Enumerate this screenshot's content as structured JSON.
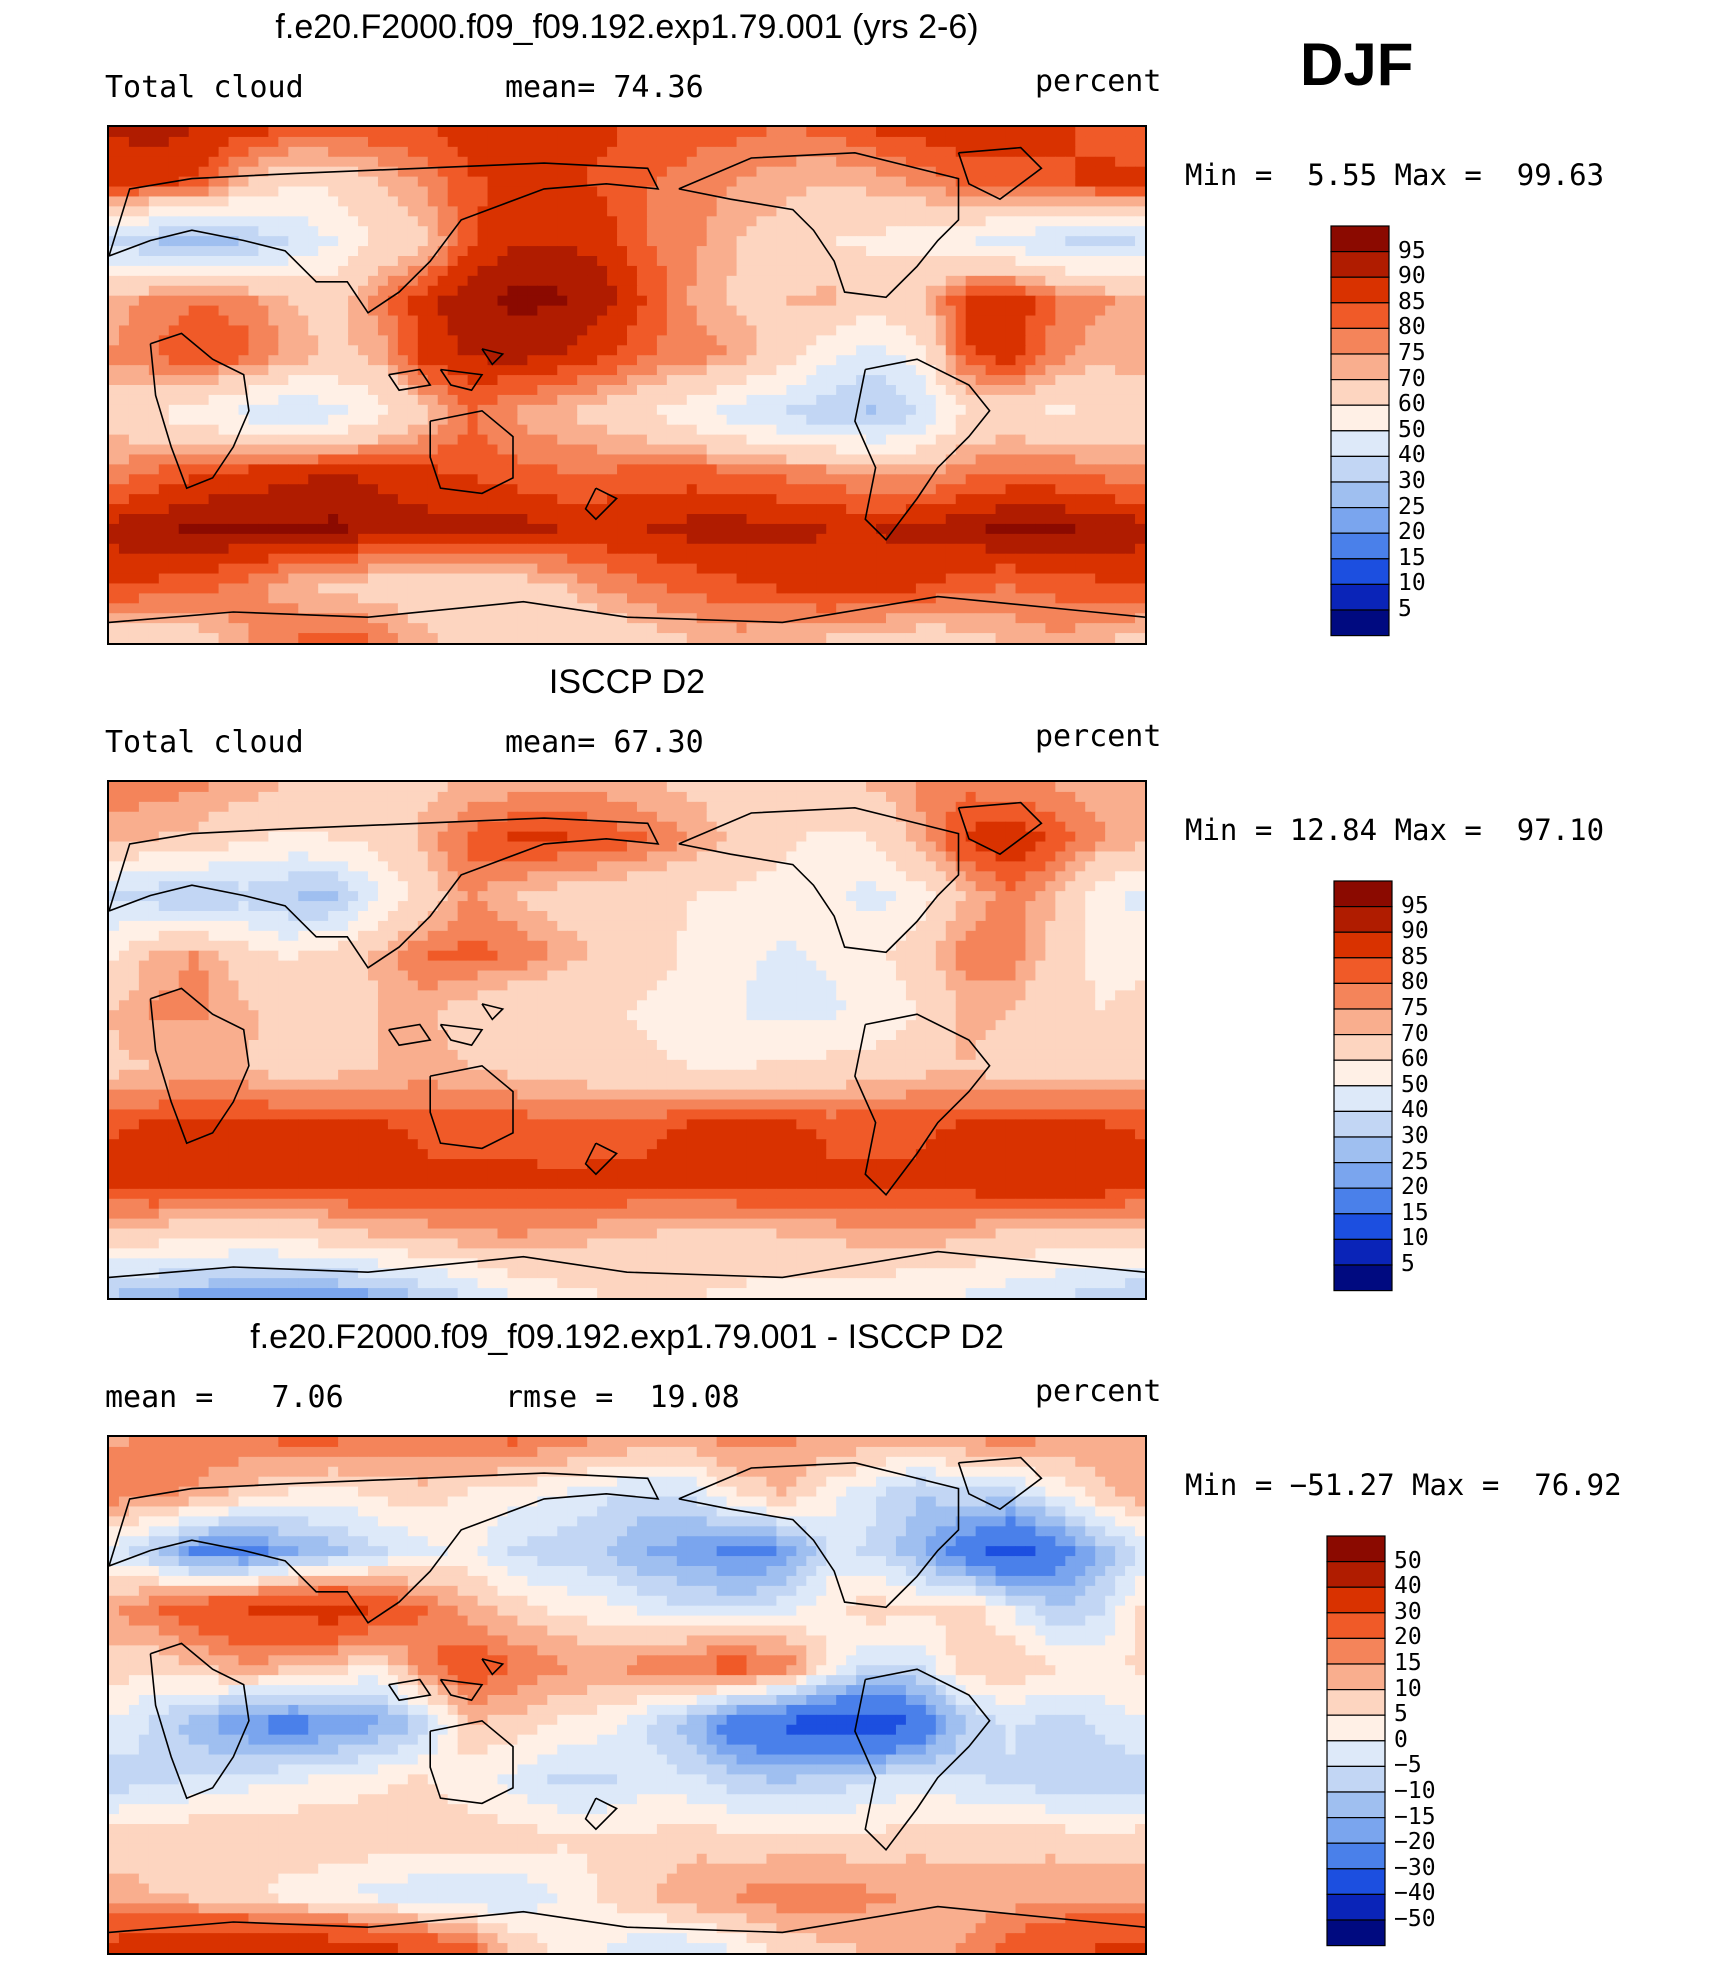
{
  "season": "DJF",
  "chart_data": [
    {
      "type": "heatmap",
      "title": "f.e20.F2000.f09_f09.192.exp1.79.001 (yrs 2-6)",
      "variable": "Total cloud",
      "units": "percent",
      "mean_label": "mean=",
      "mean_value": "74.36",
      "min_label": "Min =",
      "min_value": "5.55",
      "max_label": "Max =",
      "max_value": "99.63",
      "colorbar_levels": [
        "95",
        "90",
        "85",
        "80",
        "75",
        "70",
        "60",
        "50",
        "40",
        "30",
        "25",
        "20",
        "15",
        "10",
        "5"
      ],
      "colors": [
        "#8b0a00",
        "#b01c00",
        "#d93200",
        "#f05a28",
        "#f4845a",
        "#f9ae8e",
        "#fdd5c0",
        "#fff0e6",
        "#dde9f9",
        "#c2d6f4",
        "#9fbff0",
        "#7aa5ee",
        "#4a80ea",
        "#1c4fe0",
        "#0a24b8",
        "#000a80"
      ],
      "field": [
        [
          90,
          92,
          90,
          88,
          86,
          85,
          84,
          85,
          88,
          90,
          88,
          86,
          84,
          82,
          82,
          80,
          82,
          86,
          88,
          90,
          88,
          86,
          84,
          82
        ],
        [
          88,
          86,
          84,
          70,
          60,
          62,
          70,
          76,
          84,
          86,
          86,
          84,
          80,
          78,
          74,
          72,
          70,
          72,
          76,
          80,
          82,
          84,
          86,
          86
        ],
        [
          40,
          30,
          24,
          30,
          40,
          50,
          62,
          68,
          84,
          90,
          90,
          88,
          80,
          76,
          70,
          66,
          60,
          58,
          55,
          52,
          45,
          40,
          38,
          40
        ],
        [
          70,
          78,
          80,
          78,
          70,
          68,
          78,
          88,
          94,
          96,
          96,
          92,
          84,
          74,
          68,
          70,
          72,
          66,
          70,
          86,
          90,
          80,
          76,
          72
        ],
        [
          76,
          80,
          84,
          82,
          74,
          68,
          72,
          88,
          90,
          92,
          90,
          86,
          80,
          78,
          74,
          66,
          52,
          44,
          56,
          84,
          88,
          78,
          72,
          74
        ],
        [
          66,
          60,
          54,
          46,
          40,
          46,
          56,
          68,
          80,
          74,
          70,
          66,
          60,
          52,
          44,
          38,
          34,
          28,
          40,
          60,
          64,
          58,
          60,
          64
        ],
        [
          76,
          80,
          84,
          86,
          88,
          90,
          88,
          86,
          84,
          82,
          80,
          80,
          82,
          82,
          80,
          78,
          76,
          74,
          72,
          78,
          80,
          80,
          78,
          76
        ],
        [
          92,
          94,
          96,
          96,
          96,
          96,
          94,
          92,
          92,
          92,
          90,
          90,
          90,
          92,
          92,
          92,
          90,
          90,
          92,
          94,
          96,
          96,
          94,
          92
        ],
        [
          86,
          84,
          82,
          78,
          72,
          68,
          66,
          64,
          62,
          66,
          70,
          76,
          80,
          82,
          84,
          86,
          88,
          88,
          86,
          82,
          80,
          82,
          84,
          86
        ],
        [
          64,
          62,
          66,
          74,
          80,
          84,
          80,
          72,
          66,
          62,
          60,
          62,
          66,
          70,
          72,
          70,
          68,
          66,
          64,
          66,
          70,
          74,
          70,
          66
        ]
      ]
    },
    {
      "type": "heatmap",
      "title": "ISCCP D2",
      "variable": "Total cloud",
      "units": "percent",
      "mean_label": "mean=",
      "mean_value": "67.30",
      "min_label": "Min =",
      "min_value": "12.84",
      "max_label": "Max =",
      "max_value": "97.10",
      "colorbar_levels": [
        "95",
        "90",
        "85",
        "80",
        "75",
        "70",
        "60",
        "50",
        "40",
        "30",
        "25",
        "20",
        "15",
        "10",
        "5"
      ],
      "colors": [
        "#8b0a00",
        "#b01c00",
        "#d93200",
        "#f05a28",
        "#f4845a",
        "#f9ae8e",
        "#fdd5c0",
        "#fff0e6",
        "#dde9f9",
        "#c2d6f4",
        "#9fbff0",
        "#7aa5ee",
        "#4a80ea",
        "#1c4fe0",
        "#0a24b8",
        "#000a80"
      ],
      "field": [
        [
          80,
          78,
          76,
          74,
          70,
          68,
          66,
          68,
          70,
          72,
          74,
          72,
          70,
          68,
          66,
          66,
          68,
          72,
          76,
          78,
          76,
          74,
          72,
          70
        ],
        [
          72,
          70,
          68,
          62,
          58,
          60,
          64,
          72,
          82,
          86,
          86,
          84,
          80,
          74,
          68,
          62,
          58,
          60,
          74,
          86,
          90,
          84,
          76,
          72
        ],
        [
          40,
          34,
          30,
          36,
          30,
          28,
          50,
          64,
          76,
          70,
          66,
          64,
          62,
          60,
          58,
          56,
          52,
          46,
          56,
          70,
          78,
          72,
          54,
          46
        ],
        [
          58,
          72,
          76,
          64,
          58,
          64,
          72,
          80,
          82,
          80,
          74,
          68,
          64,
          58,
          52,
          48,
          52,
          58,
          66,
          78,
          80,
          66,
          58,
          56
        ],
        [
          70,
          76,
          76,
          72,
          66,
          64,
          70,
          72,
          66,
          60,
          60,
          62,
          58,
          54,
          50,
          46,
          48,
          52,
          60,
          72,
          70,
          62,
          60,
          64
        ],
        [
          68,
          70,
          72,
          70,
          66,
          68,
          70,
          72,
          70,
          68,
          66,
          64,
          62,
          60,
          60,
          62,
          64,
          66,
          68,
          70,
          66,
          66,
          66,
          68
        ],
        [
          84,
          86,
          88,
          88,
          86,
          86,
          86,
          84,
          84,
          84,
          82,
          84,
          84,
          86,
          86,
          86,
          84,
          84,
          84,
          86,
          88,
          86,
          86,
          84
        ],
        [
          88,
          90,
          90,
          88,
          88,
          88,
          88,
          86,
          86,
          86,
          86,
          86,
          86,
          86,
          88,
          88,
          86,
          86,
          86,
          88,
          90,
          90,
          90,
          88
        ],
        [
          64,
          62,
          60,
          58,
          60,
          64,
          68,
          70,
          72,
          74,
          72,
          70,
          68,
          66,
          66,
          68,
          70,
          72,
          72,
          70,
          66,
          64,
          64,
          64
        ],
        [
          28,
          24,
          20,
          18,
          16,
          18,
          22,
          30,
          40,
          50,
          56,
          60,
          62,
          60,
          58,
          56,
          54,
          52,
          50,
          48,
          44,
          40,
          34,
          30
        ]
      ]
    },
    {
      "type": "heatmap",
      "title": "f.e20.F2000.f09_f09.192.exp1.79.001 - ISCCP D2",
      "variable": "",
      "units": "percent",
      "mean_label": "mean =",
      "mean_value": "7.06",
      "rmse_label": "rmse =",
      "rmse_value": "19.08",
      "min_label": "Min =",
      "min_value": "−51.27",
      "max_label": "Max =",
      "max_value": "76.92",
      "colorbar_levels": [
        "50",
        "40",
        "30",
        "20",
        "15",
        "10",
        "5",
        "0",
        "−5",
        "−10",
        "−15",
        "−20",
        "−30",
        "−40",
        "−50"
      ],
      "colors": [
        "#8b0a00",
        "#b01c00",
        "#d93200",
        "#f05a28",
        "#f4845a",
        "#f9ae8e",
        "#fdd5c0",
        "#fff0e6",
        "#dde9f9",
        "#c2d6f4",
        "#9fbff0",
        "#7aa5ee",
        "#4a80ea",
        "#1c4fe0",
        "#0a24b8",
        "#000a80"
      ],
      "field": [
        [
          14,
          16,
          18,
          20,
          22,
          22,
          20,
          18,
          20,
          22,
          18,
          16,
          14,
          14,
          18,
          16,
          14,
          14,
          12,
          16,
          18,
          16,
          14,
          14
        ],
        [
          18,
          16,
          14,
          8,
          4,
          2,
          6,
          8,
          4,
          2,
          0,
          -4,
          -6,
          -4,
          6,
          10,
          2,
          -4,
          -10,
          -6,
          -8,
          0,
          8,
          14
        ],
        [
          -2,
          -10,
          -22,
          -24,
          -16,
          -12,
          -6,
          -2,
          2,
          -6,
          -8,
          -10,
          -16,
          -18,
          -22,
          -20,
          -4,
          -6,
          -14,
          -26,
          -34,
          -26,
          -14,
          -4
        ],
        [
          14,
          20,
          26,
          30,
          34,
          36,
          28,
          20,
          12,
          8,
          4,
          2,
          -2,
          -4,
          -6,
          -2,
          4,
          8,
          6,
          8,
          0,
          -10,
          -6,
          8
        ],
        [
          8,
          6,
          10,
          14,
          12,
          8,
          4,
          18,
          26,
          20,
          16,
          14,
          18,
          22,
          24,
          20,
          4,
          -6,
          -4,
          8,
          10,
          6,
          4,
          6
        ],
        [
          0,
          -6,
          -14,
          -20,
          -24,
          -20,
          -16,
          -8,
          10,
          8,
          4,
          2,
          -6,
          -14,
          -28,
          -32,
          -36,
          -38,
          -28,
          -10,
          -4,
          -8,
          -4,
          0
        ],
        [
          -8,
          -6,
          -4,
          -2,
          0,
          2,
          4,
          6,
          2,
          -2,
          -6,
          -6,
          -2,
          -4,
          -8,
          -10,
          -8,
          -4,
          -2,
          -4,
          -6,
          -8,
          -10,
          -8
        ],
        [
          8,
          8,
          10,
          10,
          10,
          10,
          8,
          8,
          8,
          8,
          6,
          6,
          6,
          8,
          6,
          6,
          6,
          6,
          8,
          8,
          8,
          8,
          6,
          8
        ],
        [
          12,
          10,
          8,
          6,
          2,
          0,
          -2,
          -4,
          -6,
          -4,
          0,
          6,
          10,
          14,
          16,
          18,
          18,
          16,
          14,
          12,
          12,
          14,
          14,
          12
        ],
        [
          36,
          38,
          40,
          42,
          42,
          40,
          36,
          30,
          24,
          10,
          4,
          0,
          -6,
          -4,
          0,
          6,
          8,
          10,
          12,
          16,
          24,
          28,
          32,
          36
        ]
      ]
    }
  ]
}
